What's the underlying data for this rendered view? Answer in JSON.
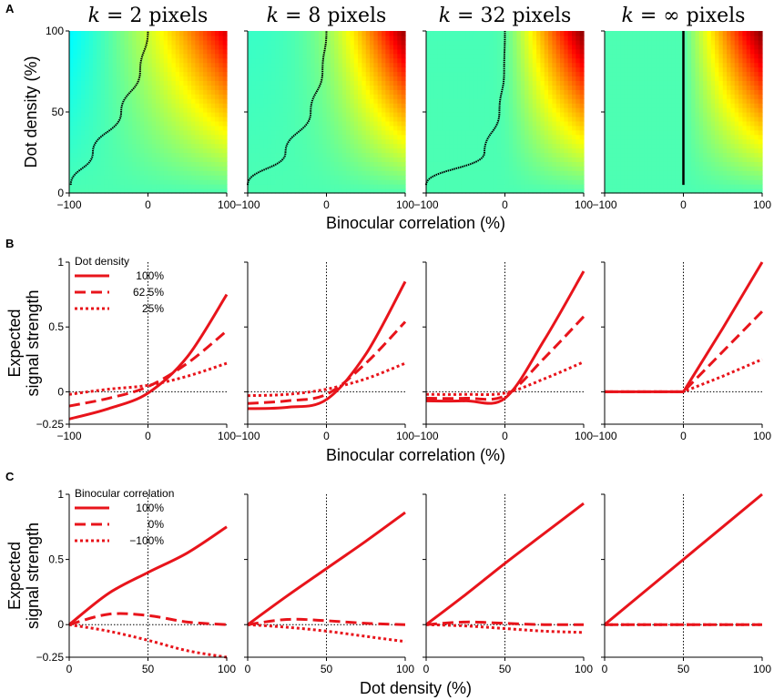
{
  "figure": {
    "panels": [
      "A",
      "B",
      "C"
    ],
    "titles": [
      "k = 2 pixels",
      "k = 8 pixels",
      "k = 32 pixels",
      "k = ∞ pixels"
    ],
    "k_values": [
      2,
      8,
      32,
      "∞"
    ],
    "colors": {
      "series": "#e8141b",
      "axis": "#000000"
    }
  },
  "chart_data": [
    {
      "panel": "A",
      "type": "heatmap",
      "xlabel": "Binocular correlation (%)",
      "ylabel": "Dot density (%)",
      "xlim": [
        -100,
        100
      ],
      "ylim": [
        0,
        100
      ],
      "xticks": [
        "-100",
        "0",
        "100"
      ],
      "yticks": [
        "0",
        "50",
        "100"
      ],
      "colormap": "jet (blue→green→yellow→red = low→high expected signal strength)",
      "zero_contour_x_at_density": {
        "densities": [
          5,
          25,
          50,
          75,
          100
        ],
        "k=2": [
          -98,
          -70,
          -34,
          -10,
          0
        ],
        "k=8": [
          -100,
          -52,
          -20,
          -5,
          0
        ],
        "k=32": [
          -100,
          -26,
          -7,
          -1,
          0
        ],
        "k=∞": [
          0,
          0,
          0,
          0,
          0
        ]
      }
    },
    {
      "panel": "B",
      "type": "line",
      "xlabel": "Binocular correlation (%)",
      "ylabel": "Expected signal strength",
      "xlim": [
        -100,
        100
      ],
      "ylim": [
        -0.25,
        1
      ],
      "xticks": [
        "-100",
        "0",
        "100"
      ],
      "yticks": [
        "-0.25",
        "0",
        "0.5",
        "1"
      ],
      "legend_title": "Dot density",
      "series_names": [
        "100%",
        "62.5%",
        "25%"
      ],
      "series_styles": [
        "solid",
        "dashed",
        "dotted"
      ],
      "x": [
        -100,
        -50,
        0,
        50,
        100
      ],
      "subplots": [
        {
          "k": "2",
          "series": [
            {
              "name": "100%",
              "values": [
                -0.21,
                -0.13,
                -0.01,
                0.27,
                0.75
              ]
            },
            {
              "name": "62.5%",
              "values": [
                -0.11,
                -0.05,
                0.04,
                0.22,
                0.47
              ]
            },
            {
              "name": "25%",
              "values": [
                -0.02,
                0.02,
                0.05,
                0.12,
                0.22
              ]
            }
          ]
        },
        {
          "k": "8",
          "series": [
            {
              "name": "100%",
              "values": [
                -0.13,
                -0.12,
                -0.06,
                0.29,
                0.85
              ]
            },
            {
              "name": "62.5%",
              "values": [
                -0.09,
                -0.07,
                -0.02,
                0.22,
                0.54
              ]
            },
            {
              "name": "25%",
              "values": [
                -0.03,
                -0.02,
                0.02,
                0.1,
                0.22
              ]
            }
          ]
        },
        {
          "k": "32",
          "series": [
            {
              "name": "100%",
              "values": [
                -0.07,
                -0.07,
                -0.05,
                0.4,
                0.93
              ]
            },
            {
              "name": "62.5%",
              "values": [
                -0.05,
                -0.05,
                -0.03,
                0.26,
                0.58
              ]
            },
            {
              "name": "25%",
              "values": [
                -0.02,
                -0.02,
                -0.01,
                0.1,
                0.23
              ]
            }
          ]
        },
        {
          "k": "∞",
          "series": [
            {
              "name": "100%",
              "values": [
                0,
                0,
                0,
                0.49,
                1.0
              ]
            },
            {
              "name": "62.5%",
              "values": [
                0,
                0,
                0,
                0.31,
                0.62
              ]
            },
            {
              "name": "25%",
              "values": [
                0,
                0,
                0,
                0.12,
                0.25
              ]
            }
          ]
        }
      ]
    },
    {
      "panel": "C",
      "type": "line",
      "xlabel": "Dot density (%)",
      "ylabel": "Expected signal strength",
      "xlim": [
        0,
        100
      ],
      "ylim": [
        -0.25,
        1
      ],
      "xticks": [
        "0",
        "50",
        "100"
      ],
      "yticks": [
        "-0.25",
        "0",
        "0.5",
        "1"
      ],
      "legend_title": "Binocular correlation",
      "series_names": [
        "100%",
        "0%",
        "−100%"
      ],
      "series_styles": [
        "solid",
        "dashed",
        "dotted"
      ],
      "x": [
        0,
        25,
        50,
        75,
        100
      ],
      "subplots": [
        {
          "k": "2",
          "series": [
            {
              "name": "100%",
              "values": [
                0,
                0.24,
                0.4,
                0.55,
                0.75
              ]
            },
            {
              "name": "0%",
              "values": [
                0,
                0.08,
                0.07,
                0.02,
                0
              ]
            },
            {
              "name": "−100%",
              "values": [
                0,
                -0.05,
                -0.12,
                -0.2,
                -0.25
              ]
            }
          ]
        },
        {
          "k": "8",
          "series": [
            {
              "name": "100%",
              "values": [
                0,
                0.22,
                0.43,
                0.64,
                0.86
              ]
            },
            {
              "name": "0%",
              "values": [
                0,
                0.04,
                0.03,
                0.01,
                0
              ]
            },
            {
              "name": "−100%",
              "values": [
                0,
                -0.02,
                -0.05,
                -0.09,
                -0.13
              ]
            }
          ]
        },
        {
          "k": "32",
          "series": [
            {
              "name": "100%",
              "values": [
                0,
                0.23,
                0.47,
                0.7,
                0.93
              ]
            },
            {
              "name": "0%",
              "values": [
                0,
                0.02,
                0.01,
                0,
                0
              ]
            },
            {
              "name": "−100%",
              "values": [
                0,
                -0.01,
                -0.03,
                -0.05,
                -0.06
              ]
            }
          ]
        },
        {
          "k": "∞",
          "series": [
            {
              "name": "100%",
              "values": [
                0,
                0.25,
                0.5,
                0.75,
                1.0
              ]
            },
            {
              "name": "0%",
              "values": [
                0,
                0,
                0,
                0,
                0
              ]
            },
            {
              "name": "−100%",
              "values": [
                0,
                0,
                0,
                0,
                0
              ]
            }
          ]
        }
      ]
    }
  ]
}
